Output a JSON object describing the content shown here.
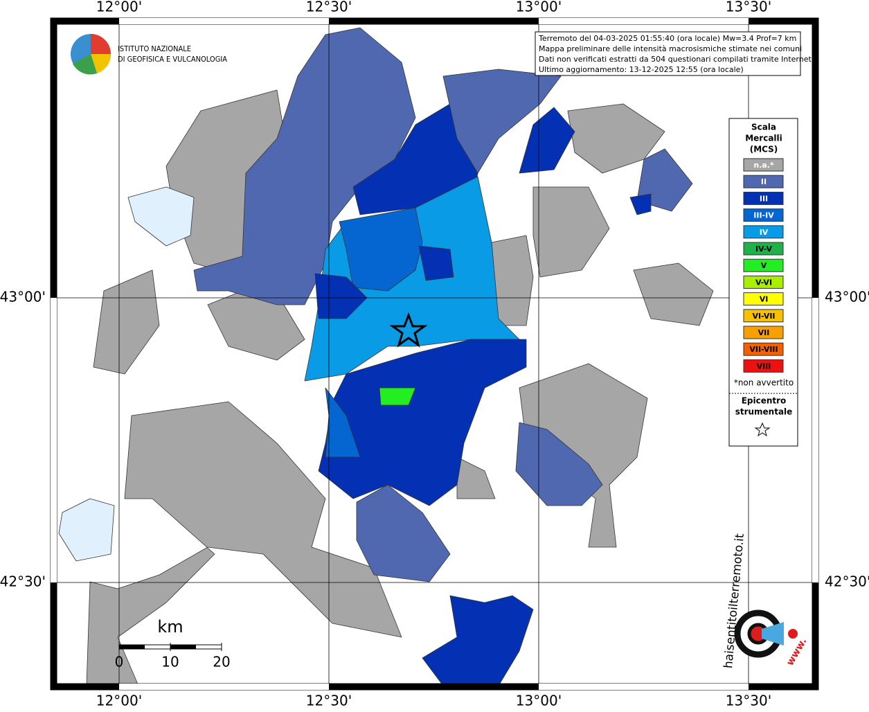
{
  "axes": {
    "lon_labels": [
      "12°00'",
      "12°30'",
      "13°00'",
      "13°30'"
    ],
    "lat_labels": [
      "43°00'",
      "42°30'"
    ]
  },
  "logo": {
    "line1": "ISTITUTO NAZIONALE",
    "line2": "DI GEOFISICA E VULCANOLOGIA"
  },
  "info": {
    "lines": [
      "Terremoto del 04-03-2025 01:55:40 (ora locale) Mw=3.4 Prof=7 km",
      "Mappa preliminare delle intensità macrosismiche stimate nei comuni",
      "Dati non verificati estratti da 504 questionari compilati tramite Internet.",
      "Ultimo aggiornamento: 13-12-2025 12:55 (ora locale)"
    ]
  },
  "legend": {
    "title_lines": [
      "Scala",
      "Mercalli",
      "(MCS)"
    ],
    "items": [
      {
        "label": "n.a.*",
        "color": "#a6a6a6"
      },
      {
        "label": "II",
        "color": "#5068b0"
      },
      {
        "label": "III",
        "color": "#0431b4"
      },
      {
        "label": "III-IV",
        "color": "#0566d2"
      },
      {
        "label": "IV",
        "color": "#0a9be6"
      },
      {
        "label": "IV-V",
        "color": "#1fb14a"
      },
      {
        "label": "V",
        "color": "#22ee22"
      },
      {
        "label": "V-VI",
        "color": "#aaee00"
      },
      {
        "label": "VI",
        "color": "#ffff00"
      },
      {
        "label": "VI-VII",
        "color": "#f7c000"
      },
      {
        "label": "VII",
        "color": "#f7a000"
      },
      {
        "label": "VII-VIII",
        "color": "#f76000"
      },
      {
        "label": "VIII",
        "color": "#ee1111"
      }
    ],
    "note": "*non avvertito",
    "epicenter_lines": [
      "Epicentro",
      "strumentale"
    ]
  },
  "scale": {
    "unit": "km",
    "ticks": [
      0,
      10,
      20
    ]
  },
  "hsit_logo": {
    "name": "haisentitoilterremoto.it",
    "www": "www."
  }
}
